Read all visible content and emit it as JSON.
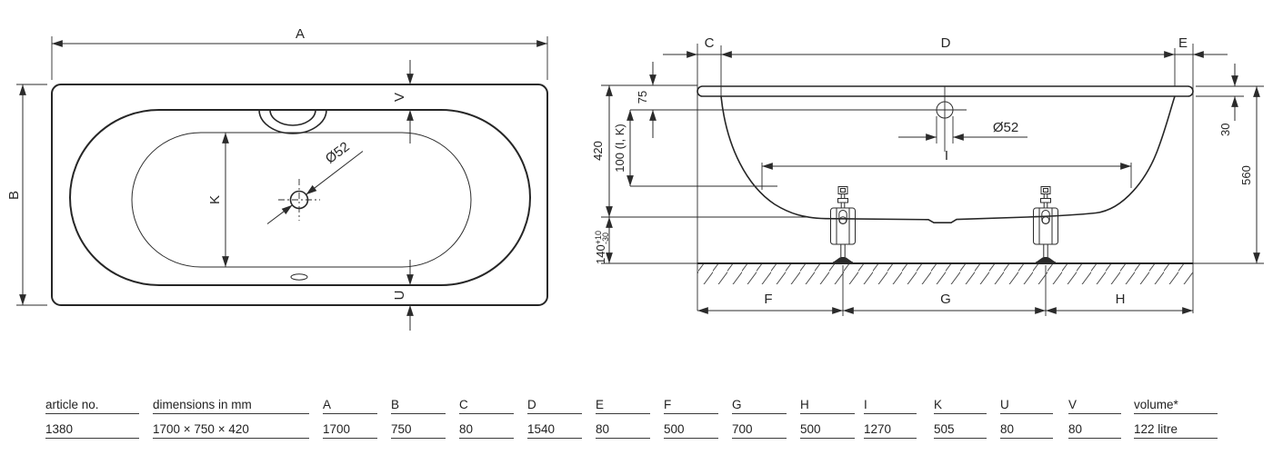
{
  "plan": {
    "dim_a": "A",
    "dim_b": "B",
    "dim_k": "K",
    "dim_v": "V",
    "dim_u": "U",
    "drain_diameter": "Ø52"
  },
  "side": {
    "dim_c": "C",
    "dim_d": "D",
    "dim_e": "E",
    "dim_f": "F",
    "dim_g": "G",
    "dim_h": "H",
    "dim_i": "I",
    "dim_75": "75",
    "dim_100": "100 (I, K)",
    "dim_420": "420",
    "dim_140": "140",
    "tol_plus": "+10",
    "tol_minus": "-30",
    "dim_30": "30",
    "dim_560": "560",
    "overflow_diameter": "Ø52"
  },
  "table": {
    "columns": [
      {
        "header": "article no.",
        "value": "1380"
      },
      {
        "header": "dimensions in mm",
        "value": "1700 × 750 × 420"
      },
      {
        "header": "A",
        "value": "1700"
      },
      {
        "header": "B",
        "value": "750"
      },
      {
        "header": "C",
        "value": "80"
      },
      {
        "header": "D",
        "value": "1540"
      },
      {
        "header": "E",
        "value": "80"
      },
      {
        "header": "F",
        "value": "500"
      },
      {
        "header": "G",
        "value": "700"
      },
      {
        "header": "H",
        "value": "500"
      },
      {
        "header": "I",
        "value": "1270"
      },
      {
        "header": "K",
        "value": "505"
      },
      {
        "header": "U",
        "value": "80"
      },
      {
        "header": "V",
        "value": "80"
      },
      {
        "header": "volume*",
        "value": "122 litre"
      }
    ]
  }
}
